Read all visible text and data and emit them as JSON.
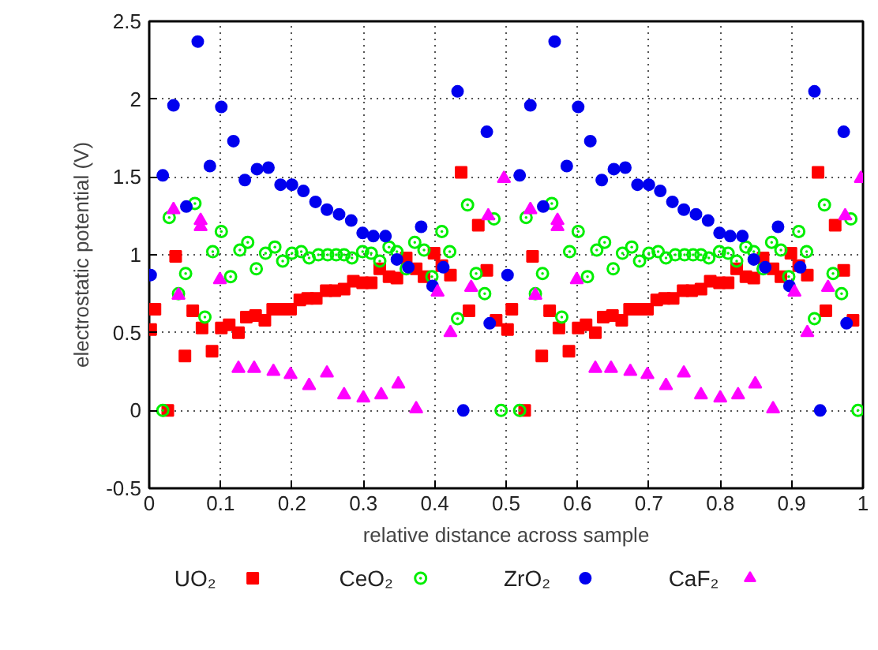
{
  "chart_data": {
    "type": "scatter",
    "xlabel": "relative distance across sample",
    "ylabel": "electrostatic potential (V)",
    "xlim": [
      0,
      1
    ],
    "ylim": [
      -0.5,
      2.5
    ],
    "xticks": [
      0,
      0.1,
      0.2,
      0.3,
      0.4,
      0.5,
      0.6,
      0.7,
      0.8,
      0.9,
      1
    ],
    "yticks": [
      -0.5,
      0,
      0.5,
      1,
      1.5,
      2,
      2.5
    ],
    "grid": true,
    "legend": "bottom",
    "series": [
      {
        "name": "UO₂",
        "color": "#ff0000",
        "marker": "square",
        "x": [
          0.002,
          0.008,
          0.026,
          0.037,
          0.05,
          0.061,
          0.074,
          0.088,
          0.101,
          0.112,
          0.125,
          0.136,
          0.149,
          0.162,
          0.173,
          0.184,
          0.198,
          0.211,
          0.222,
          0.234,
          0.248,
          0.26,
          0.273,
          0.286,
          0.299,
          0.311,
          0.323,
          0.336,
          0.347,
          0.36,
          0.374,
          0.385,
          0.399,
          0.41,
          0.422,
          0.437,
          0.448,
          0.461,
          0.473,
          0.486,
          0.502,
          0.508,
          0.526,
          0.537,
          0.55,
          0.561,
          0.574,
          0.588,
          0.601,
          0.612,
          0.625,
          0.636,
          0.649,
          0.662,
          0.673,
          0.684,
          0.698,
          0.711,
          0.722,
          0.734,
          0.748,
          0.76,
          0.773,
          0.786,
          0.799,
          0.811,
          0.823,
          0.836,
          0.847,
          0.86,
          0.874,
          0.885,
          0.899,
          0.91,
          0.922,
          0.937,
          0.948,
          0.961,
          0.973,
          0.986
        ],
        "values": [
          0.52,
          0.65,
          0,
          0.99,
          0.35,
          0.64,
          0.53,
          0.38,
          0.53,
          0.55,
          0.5,
          0.6,
          0.61,
          0.58,
          0.65,
          0.65,
          0.65,
          0.71,
          0.72,
          0.72,
          0.77,
          0.77,
          0.78,
          0.83,
          0.82,
          0.82,
          0.91,
          0.86,
          0.85,
          0.98,
          0.91,
          0.86,
          1.01,
          0.93,
          0.87,
          1.53,
          0.64,
          1.19,
          0.9,
          0.58,
          0.52,
          0.65,
          0,
          0.99,
          0.35,
          0.64,
          0.53,
          0.38,
          0.53,
          0.55,
          0.5,
          0.6,
          0.61,
          0.58,
          0.65,
          0.65,
          0.65,
          0.71,
          0.72,
          0.72,
          0.77,
          0.77,
          0.78,
          0.83,
          0.82,
          0.82,
          0.91,
          0.86,
          0.85,
          0.98,
          0.91,
          0.86,
          1.01,
          0.93,
          0.87,
          1.53,
          0.64,
          1.19,
          0.9,
          0.58
        ]
      },
      {
        "name": "CeO₂",
        "color": "#00ee00",
        "marker": "circle_dot",
        "x": [
          0.019,
          0.028,
          0.041,
          0.051,
          0.064,
          0.078,
          0.089,
          0.101,
          0.114,
          0.127,
          0.138,
          0.15,
          0.163,
          0.176,
          0.187,
          0.2,
          0.213,
          0.224,
          0.237,
          0.25,
          0.262,
          0.273,
          0.284,
          0.299,
          0.311,
          0.323,
          0.336,
          0.347,
          0.36,
          0.372,
          0.385,
          0.396,
          0.41,
          0.421,
          0.432,
          0.446,
          0.458,
          0.47,
          0.483,
          0.493,
          0.519,
          0.528,
          0.541,
          0.551,
          0.564,
          0.578,
          0.589,
          0.601,
          0.614,
          0.627,
          0.638,
          0.65,
          0.663,
          0.676,
          0.687,
          0.7,
          0.713,
          0.724,
          0.737,
          0.75,
          0.762,
          0.773,
          0.784,
          0.799,
          0.811,
          0.823,
          0.836,
          0.847,
          0.86,
          0.872,
          0.885,
          0.896,
          0.91,
          0.921,
          0.932,
          0.946,
          0.958,
          0.97,
          0.983,
          0.993
        ],
        "values": [
          0,
          1.24,
          0.75,
          0.88,
          1.33,
          0.6,
          1.02,
          1.15,
          0.86,
          1.03,
          1.08,
          0.91,
          1.01,
          1.05,
          0.96,
          1.01,
          1.02,
          0.98,
          1,
          1,
          1,
          1,
          0.98,
          1.02,
          1.01,
          0.96,
          1.05,
          1.02,
          0.91,
          1.08,
          1.03,
          0.86,
          1.15,
          1.02,
          0.59,
          1.32,
          0.88,
          0.75,
          1.23,
          0,
          0,
          1.24,
          0.75,
          0.88,
          1.33,
          0.6,
          1.02,
          1.15,
          0.86,
          1.03,
          1.08,
          0.91,
          1.01,
          1.05,
          0.96,
          1.01,
          1.02,
          0.98,
          1,
          1,
          1,
          1,
          0.98,
          1.02,
          1.01,
          0.96,
          1.05,
          1.02,
          0.91,
          1.08,
          1.03,
          0.86,
          1.15,
          1.02,
          0.59,
          1.32,
          0.88,
          0.75,
          1.23,
          0
        ]
      },
      {
        "name": "ZrO₂",
        "color": "#0000ee",
        "marker": "circle",
        "x": [
          0.002,
          0.019,
          0.034,
          0.052,
          0.068,
          0.085,
          0.101,
          0.118,
          0.134,
          0.151,
          0.167,
          0.184,
          0.2,
          0.216,
          0.233,
          0.249,
          0.266,
          0.283,
          0.299,
          0.314,
          0.331,
          0.347,
          0.363,
          0.381,
          0.397,
          0.412,
          0.432,
          0.44,
          0.473,
          0.477,
          0.502,
          0.519,
          0.534,
          0.552,
          0.568,
          0.585,
          0.601,
          0.618,
          0.634,
          0.651,
          0.667,
          0.684,
          0.7,
          0.716,
          0.733,
          0.749,
          0.766,
          0.783,
          0.799,
          0.814,
          0.831,
          0.847,
          0.863,
          0.881,
          0.897,
          0.912,
          0.932,
          0.94,
          0.973,
          0.977
        ],
        "values": [
          0.87,
          1.51,
          1.96,
          1.31,
          2.37,
          1.57,
          1.95,
          1.73,
          1.48,
          1.55,
          1.56,
          1.45,
          1.45,
          1.41,
          1.34,
          1.29,
          1.26,
          1.22,
          1.14,
          1.12,
          1.12,
          0.97,
          0.92,
          1.18,
          0.8,
          0.92,
          2.05,
          0,
          1.79,
          0.56,
          0.87,
          1.51,
          1.96,
          1.31,
          2.37,
          1.57,
          1.95,
          1.73,
          1.48,
          1.55,
          1.56,
          1.45,
          1.45,
          1.41,
          1.34,
          1.29,
          1.26,
          1.22,
          1.14,
          1.12,
          1.12,
          0.97,
          0.92,
          1.18,
          0.8,
          0.92,
          2.05,
          0,
          1.79,
          0.56
        ]
      },
      {
        "name": "CaF₂",
        "color": "#ff00ff",
        "marker": "triangle",
        "x": [
          0.034,
          0.041,
          0.072,
          0.072,
          0.099,
          0.125,
          0.147,
          0.174,
          0.198,
          0.224,
          0.249,
          0.273,
          0.3,
          0.325,
          0.349,
          0.374,
          0.404,
          0.422,
          0.451,
          0.475,
          0.497,
          0.534,
          0.541,
          0.572,
          0.572,
          0.599,
          0.625,
          0.647,
          0.674,
          0.698,
          0.724,
          0.749,
          0.773,
          0.8,
          0.825,
          0.849,
          0.874,
          0.904,
          0.922,
          0.951,
          0.975,
          0.997
        ],
        "values": [
          1.29,
          0.74,
          1.22,
          1.18,
          0.84,
          0.27,
          0.27,
          0.25,
          0.23,
          0.16,
          0.24,
          0.1,
          0.08,
          0.1,
          0.17,
          0.01,
          0.76,
          0.5,
          0.79,
          1.25,
          1.49,
          1.29,
          0.74,
          1.22,
          1.18,
          0.84,
          0.27,
          0.27,
          0.25,
          0.23,
          0.16,
          0.24,
          0.1,
          0.08,
          0.1,
          0.17,
          0.01,
          0.76,
          0.5,
          0.79,
          1.25,
          1.49
        ]
      }
    ]
  }
}
